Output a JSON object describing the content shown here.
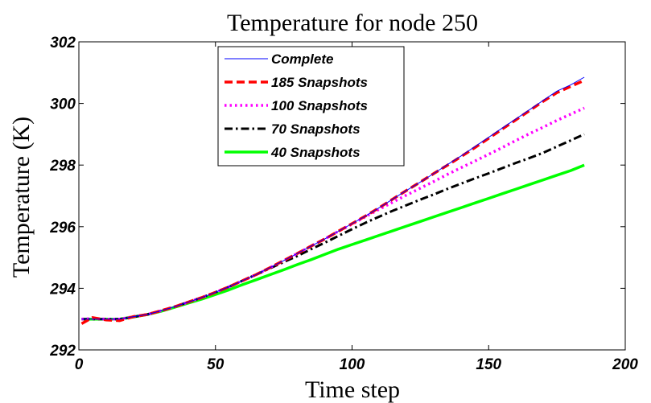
{
  "chart_data": {
    "type": "line",
    "title": "Temperature for node 250",
    "xlabel": "Time step",
    "ylabel": "Temperature (K)",
    "xlim": [
      0,
      200
    ],
    "ylim": [
      292,
      302
    ],
    "xticks": [
      "0",
      "50",
      "100",
      "150",
      "200"
    ],
    "yticks": [
      "292",
      "294",
      "296",
      "298",
      "300",
      "302"
    ],
    "grid": false,
    "legend_position": "top-left",
    "x": [
      1,
      5,
      10,
      15,
      20,
      25,
      30,
      35,
      40,
      45,
      50,
      55,
      60,
      65,
      70,
      75,
      80,
      85,
      90,
      95,
      100,
      105,
      110,
      115,
      120,
      125,
      130,
      135,
      140,
      145,
      150,
      155,
      160,
      165,
      170,
      175,
      180,
      185
    ],
    "series": [
      {
        "name": "Complete",
        "color": "#0000ff",
        "dash": "solid",
        "values": [
          293.0,
          293.0,
          293.0,
          293.0,
          293.08,
          293.15,
          293.27,
          293.4,
          293.55,
          293.7,
          293.87,
          294.05,
          294.25,
          294.45,
          294.67,
          294.9,
          295.13,
          295.37,
          295.6,
          295.85,
          296.1,
          296.35,
          296.62,
          296.9,
          297.18,
          297.45,
          297.73,
          298.02,
          298.3,
          298.6,
          298.9,
          299.2,
          299.5,
          299.8,
          300.1,
          300.4,
          300.6,
          300.85
        ]
      },
      {
        "name": "185 Snapshots",
        "color": "#ff0000",
        "dash": "dash",
        "values": [
          292.85,
          293.05,
          292.97,
          292.95,
          293.08,
          293.15,
          293.27,
          293.4,
          293.55,
          293.7,
          293.87,
          294.05,
          294.25,
          294.45,
          294.67,
          294.9,
          295.13,
          295.37,
          295.6,
          295.85,
          296.1,
          296.35,
          296.62,
          296.9,
          297.18,
          297.45,
          297.73,
          298.0,
          298.28,
          298.57,
          298.87,
          299.17,
          299.47,
          299.77,
          300.07,
          300.35,
          300.55,
          300.75
        ]
      },
      {
        "name": "100 Snapshots",
        "color": "#ff00ff",
        "dash": "dot",
        "values": [
          293.0,
          293.02,
          293.0,
          293.0,
          293.08,
          293.15,
          293.27,
          293.4,
          293.55,
          293.7,
          293.87,
          294.05,
          294.25,
          294.45,
          294.67,
          294.9,
          295.13,
          295.37,
          295.6,
          295.85,
          296.08,
          296.33,
          296.57,
          296.8,
          297.03,
          297.25,
          297.47,
          297.7,
          297.92,
          298.13,
          298.35,
          298.57,
          298.8,
          299.02,
          299.23,
          299.45,
          299.65,
          299.85
        ]
      },
      {
        "name": "70 Snapshots",
        "color": "#000000",
        "dash": "dashdot",
        "values": [
          293.0,
          293.0,
          293.0,
          293.0,
          293.07,
          293.15,
          293.27,
          293.4,
          293.55,
          293.7,
          293.87,
          294.05,
          294.25,
          294.45,
          294.65,
          294.85,
          295.05,
          295.27,
          295.48,
          295.7,
          295.92,
          296.13,
          296.33,
          296.52,
          296.7,
          296.88,
          297.05,
          297.23,
          297.4,
          297.57,
          297.73,
          297.9,
          298.07,
          298.23,
          298.4,
          298.6,
          298.8,
          299.0
        ]
      },
      {
        "name": "40 Snapshots",
        "color": "#00ff00",
        "dash": "solid",
        "values": [
          293.0,
          293.0,
          293.0,
          293.0,
          293.07,
          293.15,
          293.25,
          293.38,
          293.52,
          293.65,
          293.8,
          293.95,
          294.12,
          294.28,
          294.44,
          294.6,
          294.77,
          294.93,
          295.1,
          295.27,
          295.42,
          295.57,
          295.72,
          295.87,
          296.02,
          296.17,
          296.32,
          296.47,
          296.62,
          296.77,
          296.92,
          297.07,
          297.22,
          297.37,
          297.52,
          297.67,
          297.82,
          298.0
        ]
      }
    ]
  }
}
